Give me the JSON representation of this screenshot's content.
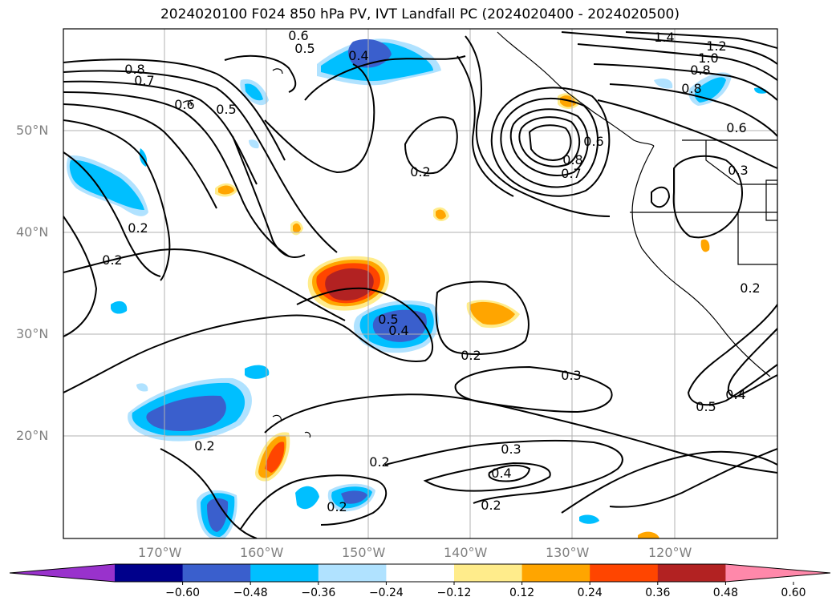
{
  "title": "2024020100 F024 850 hPa PV, IVT Landfall PC (2024020400 - 2024020500)",
  "lat_labels": [
    "50°N",
    "40°N",
    "30°N",
    "20°N"
  ],
  "lon_labels": [
    "170°W",
    "160°W",
    "150°W",
    "140°W",
    "130°W",
    "120°W"
  ],
  "colorbar": {
    "colors": [
      "#9932CC",
      "#00008B",
      "#3A5FCD",
      "#00BFFF",
      "#B0E2FF",
      "#FFFFFF",
      "#FFEC8B",
      "#FFA500",
      "#FF4500",
      "#B22222",
      "#FF88AA"
    ],
    "ticks": [
      "−0.60",
      "−0.48",
      "−0.36",
      "−0.24",
      "−0.12",
      "0.12",
      "0.24",
      "0.36",
      "0.48",
      "0.60"
    ]
  },
  "contour_labels": [
    "0.6",
    "0.5",
    "0.4",
    "0.8",
    "0.7",
    "0.6",
    "0.5",
    "0.2",
    "0.2",
    "0.2",
    "1.4",
    "1.2",
    "1.0",
    "0.8",
    "0.8",
    "0.6",
    "0.6",
    "0.8",
    "0.7",
    "0.3",
    "0.2",
    "0.5",
    "0.4",
    "0.2",
    "0.3",
    "0.5",
    "0.4",
    "0.2",
    "0.3",
    "0.4",
    "0.2",
    "0.2",
    "0.2"
  ]
}
